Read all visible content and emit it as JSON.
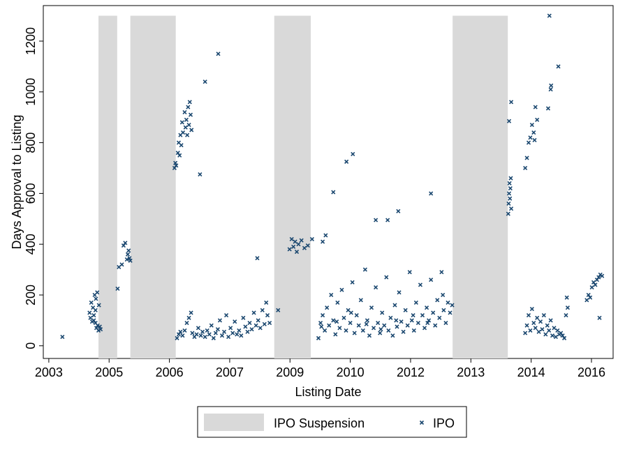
{
  "chart_data": {
    "type": "scatter",
    "x_label": "Listing Date",
    "y_label": "Days Approval to Listing",
    "xlim": [
      2003.47,
      2016.89
    ],
    "ylim": [
      -50,
      1340
    ],
    "xticks": [
      {
        "value": 2003.6,
        "label": "2003"
      },
      {
        "value": 2005.02,
        "label": "2005"
      },
      {
        "value": 2006.44,
        "label": "2006"
      },
      {
        "value": 2007.86,
        "label": "2007"
      },
      {
        "value": 2009.28,
        "label": "2009"
      },
      {
        "value": 2010.7,
        "label": "2010"
      },
      {
        "value": 2012.12,
        "label": "2012"
      },
      {
        "value": 2013.54,
        "label": "2013"
      },
      {
        "value": 2014.96,
        "label": "2014"
      },
      {
        "value": 2016.38,
        "label": "2016"
      }
    ],
    "yticks": [
      0,
      200,
      400,
      600,
      800,
      1000,
      1200
    ],
    "grid": false,
    "legend": "bottom",
    "bands": {
      "name": "IPO Suspension",
      "color": "#d9d9d9",
      "top": 1300,
      "regions": [
        [
          2004.77,
          2005.21
        ],
        [
          2005.52,
          2006.59
        ],
        [
          2008.91,
          2009.77
        ],
        [
          2013.11,
          2014.41
        ]
      ]
    },
    "series": [
      {
        "name": "IPO",
        "color": "#1a476f",
        "x": [
          2003.92,
          2004.56,
          2004.58,
          2004.6,
          2004.62,
          2004.64,
          2004.66,
          2004.68,
          2004.7,
          2004.71,
          2004.72,
          2004.74,
          2004.75,
          2004.77,
          2004.78,
          2004.8,
          2004.82,
          2004.66,
          2004.7,
          2005.22,
          2005.25,
          2005.32,
          2005.36,
          2005.4,
          2005.44,
          2005.46,
          2005.48,
          2005.5,
          2005.52,
          2006.56,
          2006.58,
          2006.6,
          2006.64,
          2006.66,
          2006.68,
          2006.7,
          2006.72,
          2006.74,
          2006.76,
          2006.8,
          2006.82,
          2006.84,
          2006.86,
          2006.88,
          2006.9,
          2006.92,
          2006.94,
          2006.96,
          2007.16,
          2007.28,
          2007.59,
          2008.51,
          2006.62,
          2006.66,
          2006.7,
          2006.75,
          2006.8,
          2006.85,
          2006.9,
          2006.95,
          2006.98,
          2007.03,
          2007.08,
          2007.12,
          2007.18,
          2007.22,
          2007.28,
          2007.33,
          2007.38,
          2007.43,
          2007.48,
          2007.53,
          2007.58,
          2007.63,
          2007.68,
          2007.73,
          2007.78,
          2007.83,
          2007.88,
          2007.93,
          2007.98,
          2008.03,
          2008.08,
          2008.13,
          2008.18,
          2008.23,
          2008.28,
          2008.33,
          2008.38,
          2008.43,
          2008.48,
          2008.53,
          2008.58,
          2008.63,
          2008.68,
          2008.72,
          2008.75,
          2008.8,
          2009.0,
          2009.27,
          2009.32,
          2009.36,
          2009.4,
          2009.44,
          2009.48,
          2009.55,
          2009.62,
          2009.7,
          2009.8,
          2010.05,
          2010.12,
          2009.95,
          2010.0,
          2010.05,
          2010.1,
          2010.15,
          2010.2,
          2010.25,
          2010.3,
          2010.35,
          2010.4,
          2010.45,
          2010.5,
          2010.55,
          2010.6,
          2010.65,
          2010.7,
          2010.75,
          2010.8,
          2010.85,
          2010.9,
          2010.95,
          2011.0,
          2011.05,
          2011.1,
          2011.15,
          2011.2,
          2011.25,
          2011.3,
          2011.35,
          2011.4,
          2011.45,
          2011.5,
          2011.55,
          2011.6,
          2011.65,
          2011.7,
          2011.75,
          2011.8,
          2011.85,
          2011.9,
          2011.95,
          2012.0,
          2012.05,
          2012.1,
          2012.15,
          2012.2,
          2012.25,
          2012.3,
          2012.35,
          2012.4,
          2012.45,
          2012.5,
          2012.55,
          2012.6,
          2012.65,
          2012.7,
          2012.75,
          2012.8,
          2012.85,
          2012.9,
          2012.95,
          2013.0,
          2013.05,
          2013.1,
          2010.02,
          2010.38,
          2010.72,
          2011.08,
          2011.42,
          2011.78,
          2012.18,
          2012.52,
          2012.88,
          2010.3,
          2010.61,
          2010.76,
          2011.3,
          2011.58,
          2011.83,
          2012.6,
          2014.42,
          2014.43,
          2014.44,
          2014.45,
          2014.46,
          2014.47,
          2014.48,
          2014.49,
          2014.44,
          2014.49,
          2014.82,
          2014.86,
          2014.9,
          2014.94,
          2014.98,
          2015.02,
          2015.06,
          2015.1,
          2015.14,
          2015.18,
          2015.22,
          2015.26,
          2015.3,
          2015.34,
          2015.38,
          2015.42,
          2015.46,
          2015.5,
          2015.54,
          2015.58,
          2015.62,
          2015.66,
          2015.7,
          2015.74,
          2015.78,
          2015.8,
          2015.82,
          2014.82,
          2014.86,
          2014.9,
          2014.94,
          2014.98,
          2015.02,
          2015.06,
          2015.1,
          2015.04,
          2015.36,
          2015.39,
          2015.42,
          2015.43,
          2015.6,
          2016.27,
          2016.31,
          2016.35,
          2016.39,
          2016.43,
          2016.47,
          2016.51,
          2016.55,
          2016.59,
          2016.63,
          2016.57
        ],
        "values": [
          35,
          130,
          110,
          170,
          95,
          150,
          120,
          200,
          90,
          185,
          70,
          210,
          80,
          60,
          160,
          75,
          65,
          100,
          140,
          225,
          310,
          320,
          395,
          405,
          340,
          360,
          375,
          345,
          335,
          700,
          720,
          710,
          760,
          800,
          750,
          830,
          790,
          880,
          840,
          920,
          860,
          890,
          830,
          940,
          870,
          960,
          910,
          850,
          675,
          1040,
          1150,
          345,
          30,
          45,
          55,
          40,
          60,
          90,
          110,
          130,
          50,
          35,
          45,
          70,
          40,
          55,
          35,
          60,
          45,
          80,
          30,
          50,
          65,
          100,
          40,
          55,
          120,
          35,
          70,
          50,
          95,
          45,
          60,
          40,
          110,
          75,
          55,
          90,
          65,
          130,
          80,
          100,
          70,
          140,
          85,
          170,
          120,
          90,
          140,
          380,
          420,
          390,
          410,
          370,
          400,
          415,
          385,
          395,
          420,
          410,
          435,
          30,
          90,
          120,
          60,
          150,
          80,
          200,
          100,
          45,
          170,
          70,
          220,
          110,
          60,
          140,
          90,
          250,
          50,
          120,
          80,
          180,
          60,
          300,
          100,
          40,
          150,
          70,
          230,
          90,
          50,
          130,
          80,
          270,
          60,
          110,
          40,
          160,
          75,
          210,
          95,
          55,
          140,
          80,
          290,
          100,
          60,
          170,
          90,
          240,
          120,
          70,
          150,
          100,
          260,
          130,
          80,
          180,
          110,
          290,
          140,
          90,
          170,
          130,
          160,
          75,
          95,
          130,
          85,
          65,
          100,
          120,
          90,
          200,
          605,
          725,
          755,
          495,
          495,
          530,
          600,
          520,
          560,
          600,
          640,
          580,
          620,
          660,
          540,
          885,
          960,
          50,
          80,
          120,
          60,
          145,
          90,
          70,
          110,
          55,
          95,
          65,
          120,
          45,
          80,
          60,
          100,
          40,
          70,
          35,
          60,
          45,
          50,
          40,
          30,
          120,
          190,
          150,
          700,
          740,
          800,
          820,
          870,
          840,
          940,
          890,
          810,
          935,
          1300,
          1010,
          1025,
          1100,
          180,
          200,
          190,
          230,
          250,
          240,
          260,
          270,
          280,
          275,
          110
        ]
      }
    ]
  }
}
